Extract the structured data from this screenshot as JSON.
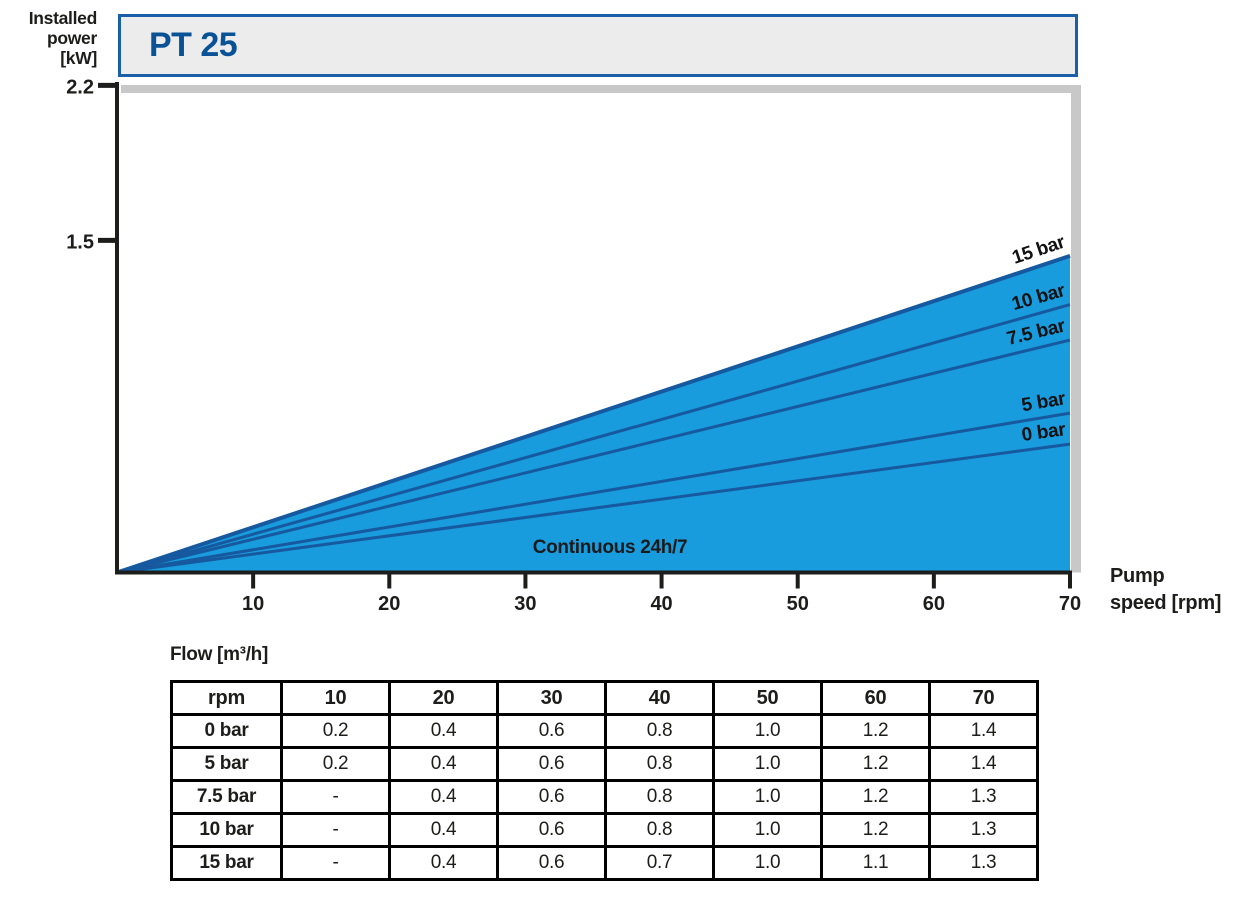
{
  "title": "PT 25",
  "y_axis_label": "Installed\npower\n[kW]",
  "x_axis_label": "Pump\nspeed [rpm]",
  "colors": {
    "area_fill": "#189cde",
    "curve_line": "#17599f",
    "title_text": "#0a5296",
    "title_border": "#1a5fa8",
    "title_bg": "#ececec",
    "shadow_gray": "#c8c8c8",
    "axis_black": "#1d1d1b",
    "text_black": "#1d1d1b"
  },
  "chart_data": {
    "type": "area",
    "title": "PT 25",
    "xlabel": "Pump speed [rpm]",
    "ylabel": "Installed power [kW]",
    "x_ticks": [
      10,
      20,
      30,
      40,
      50,
      60,
      70
    ],
    "y_ticks": [
      "2.2",
      "1.5"
    ],
    "xlim": [
      0,
      70
    ],
    "ylim": [
      0,
      2.3
    ],
    "grid": false,
    "legend_position": "inline-rotated-labels",
    "area_label": "Continuous 24h/7",
    "fill_note": "solid blue area fills from x-axis up to the 15 bar line, all curves start at origin",
    "series": [
      {
        "name": "15 bar",
        "x": [
          0,
          70
        ],
        "power_kw": [
          0,
          1.43
        ]
      },
      {
        "name": "10 bar",
        "x": [
          0,
          70
        ],
        "power_kw": [
          0,
          1.21
        ]
      },
      {
        "name": "7.5 bar",
        "x": [
          0,
          70
        ],
        "power_kw": [
          0,
          1.05
        ]
      },
      {
        "name": "5 bar",
        "x": [
          0,
          70
        ],
        "power_kw": [
          0,
          0.72
        ]
      },
      {
        "name": "0 bar",
        "x": [
          0,
          70
        ],
        "power_kw": [
          0,
          0.58
        ]
      }
    ]
  },
  "flow_table": {
    "caption": "Flow [m³/h]",
    "columns": [
      "rpm",
      "10",
      "20",
      "30",
      "40",
      "50",
      "60",
      "70"
    ],
    "rows": [
      {
        "label": "0 bar",
        "values": [
          "0.2",
          "0.4",
          "0.6",
          "0.8",
          "1.0",
          "1.2",
          "1.4"
        ]
      },
      {
        "label": "5 bar",
        "values": [
          "0.2",
          "0.4",
          "0.6",
          "0.8",
          "1.0",
          "1.2",
          "1.4"
        ]
      },
      {
        "label": "7.5 bar",
        "values": [
          "-",
          "0.4",
          "0.6",
          "0.8",
          "1.0",
          "1.2",
          "1.3"
        ]
      },
      {
        "label": "10 bar",
        "values": [
          "-",
          "0.4",
          "0.6",
          "0.8",
          "1.0",
          "1.2",
          "1.3"
        ]
      },
      {
        "label": "15 bar",
        "values": [
          "-",
          "0.4",
          "0.6",
          "0.7",
          "1.0",
          "1.1",
          "1.3"
        ]
      }
    ]
  }
}
